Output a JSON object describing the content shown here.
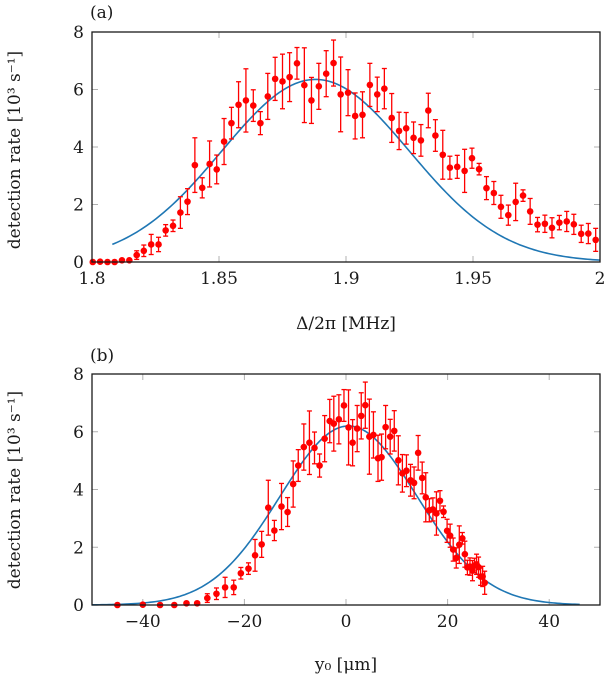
{
  "colors": {
    "points": "#ff0000",
    "fit": "#1f77b4",
    "axis": "#1a1a1a",
    "tick": "#b0b0b0"
  },
  "chart_data": [
    {
      "type": "scatter",
      "panel_label": "(a)",
      "title": "",
      "xlabel": "Δ/2π [MHz]",
      "ylabel": "detection rate [10³ s⁻¹]",
      "xlim": [
        1.8,
        2.0
      ],
      "ylim": [
        0,
        8
      ],
      "xticks": [
        1.8,
        1.85,
        1.9,
        1.95,
        2.0
      ],
      "xtick_labels": [
        "1.8",
        "1.85",
        "1.9",
        "1.95",
        "2"
      ],
      "yticks": [
        0,
        2,
        4,
        6,
        8
      ],
      "ytick_labels": [
        "0",
        "2",
        "4",
        "6",
        "8"
      ],
      "grid": false,
      "legend": "none",
      "series": [
        {
          "name": "measured detection rate",
          "style": "red markers with error bars",
          "x": [
            1.8003,
            1.8032,
            1.8061,
            1.8089,
            1.8118,
            1.8147,
            1.8176,
            1.8204,
            1.8233,
            1.8262,
            1.829,
            1.8319,
            1.8348,
            1.8376,
            1.8405,
            1.8434,
            1.8463,
            1.8491,
            1.852,
            1.8549,
            1.8577,
            1.8606,
            1.8635,
            1.8663,
            1.8692,
            1.8721,
            1.875,
            1.8778,
            1.8807,
            1.8836,
            1.8864,
            1.8893,
            1.8922,
            1.8951,
            1.8979,
            1.9008,
            1.9036,
            1.9065,
            1.9094,
            1.9123,
            1.9151,
            1.918,
            1.9209,
            1.9237,
            1.9266,
            1.9295,
            1.9324,
            1.9352,
            1.9381,
            1.9409,
            1.9438,
            1.9467,
            1.9496,
            1.9524,
            1.9553,
            1.9582,
            1.961,
            1.9639,
            1.9668,
            1.9697,
            1.9725,
            1.9754,
            1.9783,
            1.9811,
            1.984,
            1.9869,
            1.9897,
            1.9926,
            1.9954,
            1.9983
          ],
          "y": [
            0.0,
            0.01,
            0.0,
            0.0,
            0.06,
            0.06,
            0.24,
            0.39,
            0.61,
            0.61,
            1.1,
            1.26,
            1.72,
            2.1,
            3.37,
            2.58,
            3.41,
            3.22,
            4.19,
            4.83,
            5.47,
            5.62,
            5.44,
            4.83,
            5.76,
            6.37,
            6.28,
            6.43,
            6.91,
            6.15,
            5.62,
            6.11,
            6.55,
            6.92,
            5.83,
            5.89,
            5.08,
            5.12,
            6.16,
            5.83,
            6.03,
            5.01,
            4.56,
            4.65,
            4.32,
            4.23,
            5.27,
            4.4,
            3.73,
            3.28,
            3.31,
            3.17,
            3.61,
            3.23,
            2.57,
            2.4,
            1.92,
            1.63,
            2.09,
            2.31,
            1.76,
            1.3,
            1.33,
            1.19,
            1.37,
            1.41,
            1.31,
            0.98,
            0.99,
            0.77
          ],
          "yerr": [
            0.02,
            0.02,
            0.02,
            0.02,
            0.05,
            0.05,
            0.15,
            0.2,
            0.35,
            0.25,
            0.2,
            0.2,
            0.55,
            0.45,
            0.95,
            0.35,
            0.8,
            0.5,
            0.8,
            0.55,
            0.8,
            1.1,
            0.55,
            0.4,
            0.8,
            0.75,
            0.95,
            0.85,
            0.55,
            1.3,
            0.8,
            0.8,
            0.8,
            0.8,
            1.3,
            0.8,
            0.8,
            0.8,
            0.75,
            0.6,
            0.7,
            0.85,
            0.65,
            0.55,
            0.55,
            0.55,
            0.6,
            0.55,
            0.85,
            0.4,
            0.4,
            0.75,
            0.35,
            0.2,
            0.4,
            0.4,
            0.4,
            0.35,
            0.65,
            0.2,
            0.45,
            0.25,
            0.3,
            0.35,
            0.25,
            0.35,
            0.35,
            0.3,
            0.35,
            0.4
          ]
        },
        {
          "name": "fit",
          "style": "blue line",
          "model": "gaussian",
          "amplitude": 6.35,
          "center": 1.888,
          "sigma": 0.037,
          "x_start": 1.808,
          "x_end": 2.0
        }
      ]
    },
    {
      "type": "scatter",
      "panel_label": "(b)",
      "title": "",
      "xlabel": "y₀ [μm]",
      "ylabel": "detection rate [10³ s⁻¹]",
      "xlim": [
        -50,
        50
      ],
      "ylim": [
        0,
        8
      ],
      "xticks": [
        -40,
        -20,
        0,
        20,
        40
      ],
      "xtick_labels": [
        "−40",
        "−20",
        "0",
        "20",
        "40"
      ],
      "yticks": [
        0,
        2,
        4,
        6,
        8
      ],
      "ytick_labels": [
        "0",
        "2",
        "4",
        "6",
        "8"
      ],
      "grid": false,
      "legend": "none",
      "series": [
        {
          "name": "measured detection rate",
          "style": "red markers with error bars",
          "x": [
            -45.0,
            -40.0,
            -36.6,
            -33.8,
            -31.4,
            -29.3,
            -27.3,
            -25.5,
            -23.8,
            -22.1,
            -20.7,
            -19.2,
            -17.9,
            -16.6,
            -15.3,
            -14.1,
            -12.7,
            -11.5,
            -10.4,
            -9.4,
            -8.3,
            -7.2,
            -6.2,
            -5.2,
            -4.2,
            -3.2,
            -2.4,
            -1.4,
            -0.4,
            0.5,
            1.3,
            2.2,
            3.0,
            3.8,
            4.6,
            5.4,
            6.3,
            7.0,
            7.8,
            8.7,
            9.5,
            10.3,
            11.1,
            11.9,
            12.7,
            13.4,
            14.2,
            15.0,
            15.7,
            16.4,
            17.1,
            17.8,
            18.5,
            19.2,
            19.9,
            20.5,
            21.1,
            21.7,
            22.3,
            22.9,
            23.4,
            23.9,
            24.4,
            24.9,
            25.3,
            25.7,
            26.1,
            26.5,
            26.9,
            27.3
          ],
          "y": [
            0.0,
            0.01,
            0.0,
            0.0,
            0.06,
            0.06,
            0.24,
            0.39,
            0.61,
            0.61,
            1.1,
            1.26,
            1.72,
            2.1,
            3.37,
            2.58,
            3.41,
            3.22,
            4.19,
            4.83,
            5.47,
            5.62,
            5.44,
            4.83,
            5.76,
            6.37,
            6.28,
            6.43,
            6.91,
            6.15,
            5.62,
            6.11,
            6.55,
            6.92,
            5.83,
            5.89,
            5.08,
            5.12,
            6.16,
            5.83,
            6.03,
            5.01,
            4.56,
            4.65,
            4.32,
            4.23,
            5.27,
            4.4,
            3.73,
            3.28,
            3.31,
            3.17,
            3.61,
            3.23,
            2.57,
            2.4,
            1.92,
            1.63,
            2.09,
            2.31,
            1.76,
            1.3,
            1.33,
            1.19,
            1.37,
            1.41,
            1.31,
            0.98,
            0.99,
            0.77
          ],
          "yerr": [
            0.02,
            0.02,
            0.02,
            0.02,
            0.05,
            0.05,
            0.15,
            0.2,
            0.35,
            0.25,
            0.2,
            0.2,
            0.55,
            0.45,
            0.95,
            0.35,
            0.8,
            0.5,
            0.8,
            0.55,
            0.8,
            1.1,
            0.55,
            0.4,
            0.8,
            0.75,
            0.95,
            0.85,
            0.55,
            1.3,
            0.8,
            0.8,
            0.8,
            0.8,
            1.3,
            0.8,
            0.8,
            0.8,
            0.75,
            0.6,
            0.7,
            0.85,
            0.65,
            0.55,
            0.55,
            0.55,
            0.6,
            0.55,
            0.85,
            0.4,
            0.4,
            0.75,
            0.35,
            0.2,
            0.4,
            0.4,
            0.4,
            0.35,
            0.65,
            0.2,
            0.45,
            0.25,
            0.3,
            0.35,
            0.25,
            0.35,
            0.35,
            0.3,
            0.35,
            0.4
          ]
        },
        {
          "name": "fit",
          "style": "blue line",
          "model": "gaussian",
          "amplitude": 6.2,
          "center": 0.5,
          "sigma": 13.5,
          "x_start": -50,
          "x_end": 46
        }
      ]
    }
  ]
}
